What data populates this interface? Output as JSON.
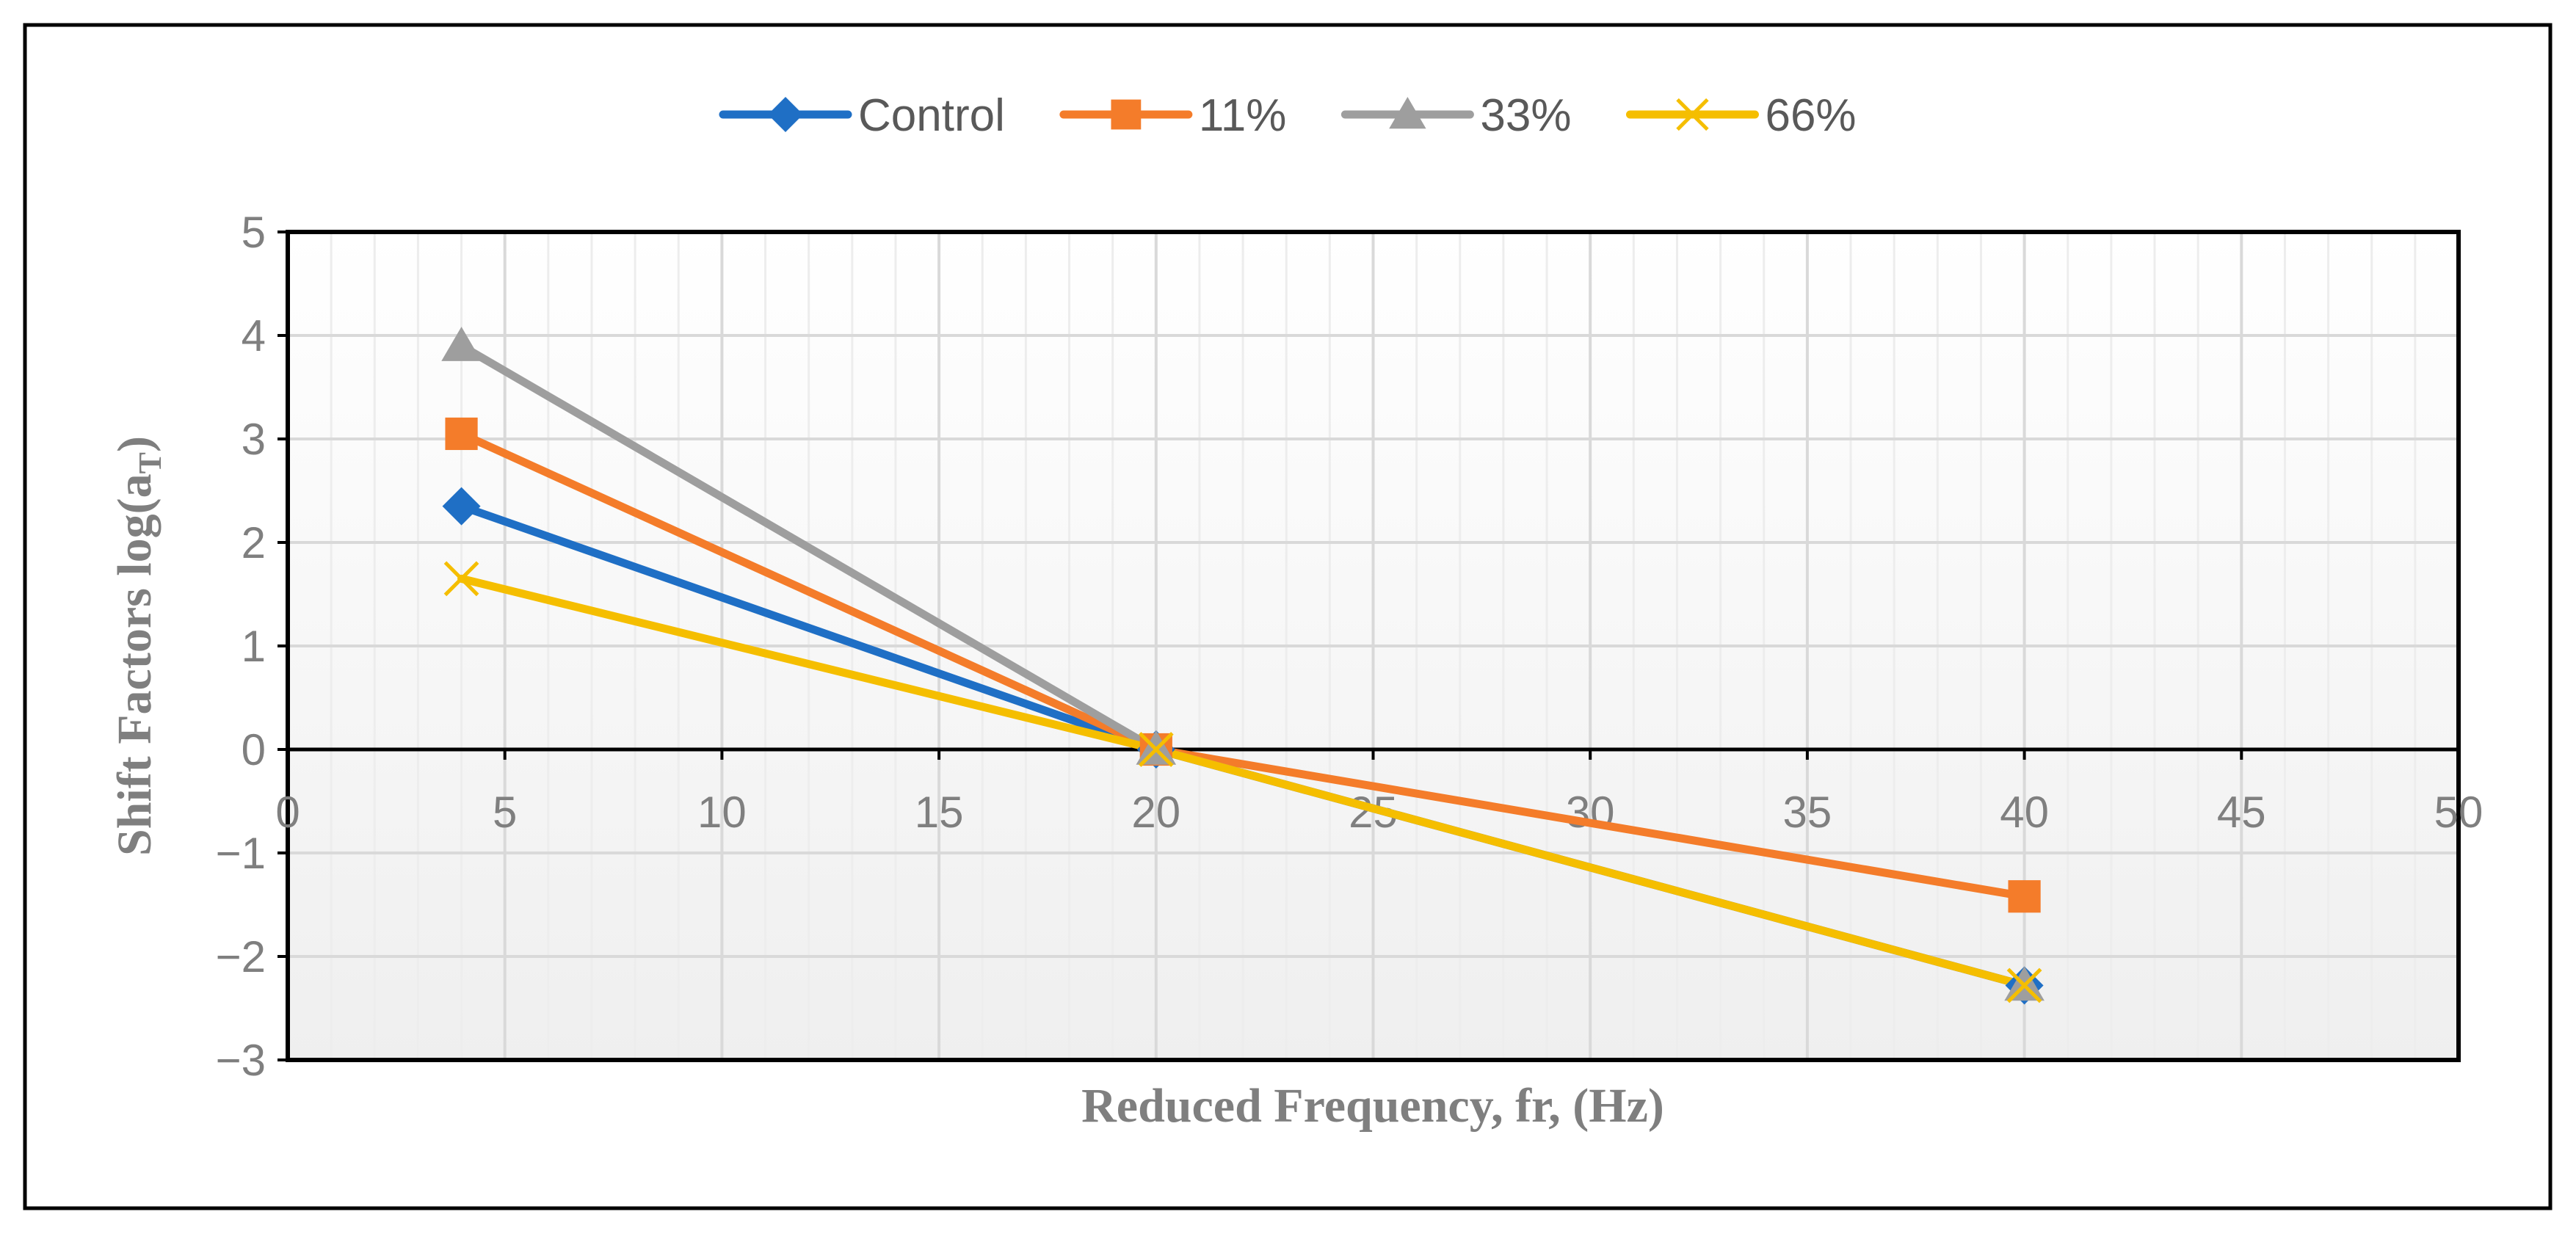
{
  "chart_data": {
    "type": "line",
    "title": "",
    "xlabel": "Reduced Frequency, fr, (Hz)",
    "ylabel": "Shift Factors log(a",
    "ylabel_sub": "T",
    "ylabel_close": ")",
    "xlim": [
      0,
      50
    ],
    "ylim": [
      -3,
      5
    ],
    "xticks": [
      "0",
      "5",
      "10",
      "15",
      "20",
      "25",
      "30",
      "35",
      "40",
      "45",
      "50"
    ],
    "yticks": [
      "5",
      "4",
      "3",
      "2",
      "1",
      "0",
      "−1",
      "−2",
      "−3"
    ],
    "ytick_values": [
      5,
      4,
      3,
      2,
      1,
      0,
      -1,
      -2,
      -3
    ],
    "xtick_values": [
      0,
      5,
      10,
      15,
      20,
      25,
      30,
      35,
      40,
      45,
      50
    ],
    "grid": true,
    "legend_position": "top",
    "series": [
      {
        "name": "Control",
        "marker": "diamond",
        "color": "#1f6fc5",
        "x": [
          4,
          20,
          40
        ],
        "y": [
          2.35,
          0,
          -2.28
        ]
      },
      {
        "name": "11%",
        "marker": "square",
        "color": "#f47c2a",
        "x": [
          4,
          20,
          40
        ],
        "y": [
          3.05,
          0,
          -1.42
        ]
      },
      {
        "name": "33%",
        "marker": "triangle",
        "color": "#9e9e9e",
        "x": [
          4,
          20,
          40
        ],
        "y": [
          3.9,
          0,
          -2.28
        ]
      },
      {
        "name": "66%",
        "marker": "x",
        "color": "#f5be00",
        "x": [
          4,
          20,
          40
        ],
        "y": [
          1.65,
          0,
          -2.28
        ]
      }
    ]
  }
}
